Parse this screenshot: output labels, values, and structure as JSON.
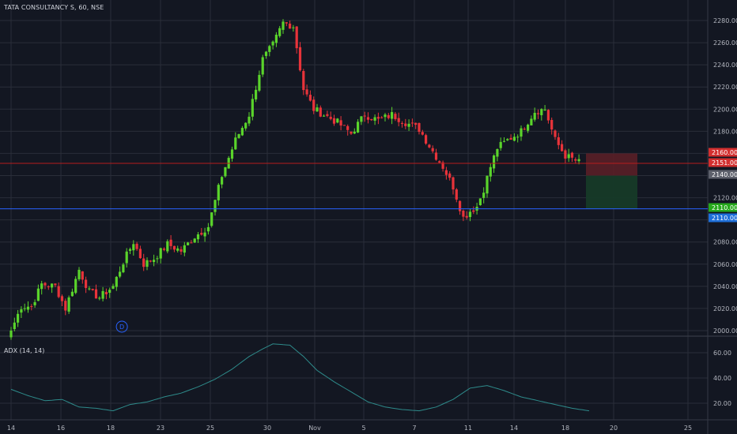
{
  "header": {
    "symbol_title": "TATA CONSULTANCY S, 60, NSE"
  },
  "indicator": {
    "title": "ADX (14, 14)"
  },
  "colors": {
    "background": "#131722",
    "grid": "#2a2e39",
    "up": "#5ad42b",
    "down": "#e8333a",
    "red_line": "#b71c1c",
    "blue_line": "#2962ff",
    "adx_line": "#2e8b8b",
    "stop_zone": "#5a1f27",
    "target_zone": "#163a28",
    "axis_text": "#b2b5be"
  },
  "chart_data": {
    "type": "candlestick",
    "title": "TATA CONSULTANCY S, 60, NSE",
    "x_ticks": [
      "14",
      "16",
      "18",
      "23",
      "25",
      "30",
      "Nov",
      "5",
      "7",
      "11",
      "14",
      "18",
      "20",
      "25"
    ],
    "y_ticks": [
      "2000.00",
      "2020.00",
      "2040.00",
      "2060.00",
      "2080.00",
      "2100.00",
      "2120.00",
      "2140.00",
      "2160.00",
      "2180.00",
      "2200.00",
      "2220.00",
      "2240.00",
      "2260.00",
      "2280.00"
    ],
    "ylim": [
      1995,
      2285
    ],
    "grid": true,
    "anchors": [
      {
        "bar": 0,
        "price": 2000
      },
      {
        "bar": 3,
        "price": 2022
      },
      {
        "bar": 6,
        "price": 2022
      },
      {
        "bar": 9,
        "price": 2042
      },
      {
        "bar": 13,
        "price": 2040
      },
      {
        "bar": 16,
        "price": 2020
      },
      {
        "bar": 20,
        "price": 2055
      },
      {
        "bar": 23,
        "price": 2035
      },
      {
        "bar": 26,
        "price": 2030
      },
      {
        "bar": 30,
        "price": 2040
      },
      {
        "bar": 33,
        "price": 2062
      },
      {
        "bar": 36,
        "price": 2080
      },
      {
        "bar": 39,
        "price": 2060
      },
      {
        "bar": 42,
        "price": 2065
      },
      {
        "bar": 46,
        "price": 2078
      },
      {
        "bar": 50,
        "price": 2072
      },
      {
        "bar": 54,
        "price": 2085
      },
      {
        "bar": 58,
        "price": 2094
      },
      {
        "bar": 62,
        "price": 2140
      },
      {
        "bar": 66,
        "price": 2172
      },
      {
        "bar": 70,
        "price": 2195
      },
      {
        "bar": 74,
        "price": 2245
      },
      {
        "bar": 77,
        "price": 2258
      },
      {
        "bar": 80,
        "price": 2278
      },
      {
        "bar": 83,
        "price": 2275
      },
      {
        "bar": 86,
        "price": 2218
      },
      {
        "bar": 89,
        "price": 2200
      },
      {
        "bar": 92,
        "price": 2195
      },
      {
        "bar": 96,
        "price": 2188
      },
      {
        "bar": 100,
        "price": 2178
      },
      {
        "bar": 104,
        "price": 2195
      },
      {
        "bar": 108,
        "price": 2190
      },
      {
        "bar": 112,
        "price": 2195
      },
      {
        "bar": 116,
        "price": 2188
      },
      {
        "bar": 120,
        "price": 2182
      },
      {
        "bar": 124,
        "price": 2162
      },
      {
        "bar": 127,
        "price": 2148
      },
      {
        "bar": 130,
        "price": 2130
      },
      {
        "bar": 133,
        "price": 2102
      },
      {
        "bar": 135,
        "price": 2108
      },
      {
        "bar": 137,
        "price": 2112
      },
      {
        "bar": 139,
        "price": 2128
      },
      {
        "bar": 141,
        "price": 2148
      },
      {
        "bar": 143,
        "price": 2165
      },
      {
        "bar": 146,
        "price": 2172
      },
      {
        "bar": 150,
        "price": 2180
      },
      {
        "bar": 154,
        "price": 2198
      },
      {
        "bar": 157,
        "price": 2200
      },
      {
        "bar": 160,
        "price": 2172
      },
      {
        "bar": 163,
        "price": 2158
      },
      {
        "bar": 167,
        "price": 2152
      }
    ],
    "horizontal_lines": [
      {
        "price": 2151,
        "label": "2151.00",
        "color": "#b71c1c"
      },
      {
        "price": 2110,
        "label": "2110.00",
        "color": "#2962ff"
      }
    ],
    "price_tags": [
      {
        "label": "2160.00",
        "bg": "#d32f2f"
      },
      {
        "label": "2151.00",
        "bg": "#d32f2f"
      },
      {
        "label": "2140.00",
        "bg": "#5d606b"
      },
      {
        "label": "2110.00",
        "bg": "#26a91c"
      },
      {
        "label": "2110.00",
        "bg": "#1e6fd9"
      }
    ],
    "position_tool": {
      "entry": 2140,
      "stop": 2160,
      "target": 2110
    },
    "marker": {
      "bar": 27,
      "label": "D"
    },
    "indicator": {
      "name": "ADX",
      "title": "ADX (14, 14)",
      "y_ticks": [
        "20.00",
        "40.00",
        "60.00"
      ],
      "ylim": [
        10,
        72
      ],
      "anchors": [
        {
          "bar": 0,
          "value": 31
        },
        {
          "bar": 5,
          "value": 26
        },
        {
          "bar": 10,
          "value": 22
        },
        {
          "bar": 15,
          "value": 23
        },
        {
          "bar": 20,
          "value": 17
        },
        {
          "bar": 25,
          "value": 16
        },
        {
          "bar": 30,
          "value": 14
        },
        {
          "bar": 35,
          "value": 19
        },
        {
          "bar": 40,
          "value": 21
        },
        {
          "bar": 45,
          "value": 25
        },
        {
          "bar": 50,
          "value": 28
        },
        {
          "bar": 55,
          "value": 33
        },
        {
          "bar": 60,
          "value": 39
        },
        {
          "bar": 65,
          "value": 47
        },
        {
          "bar": 70,
          "value": 57
        },
        {
          "bar": 74,
          "value": 63
        },
        {
          "bar": 77,
          "value": 67
        },
        {
          "bar": 82,
          "value": 66
        },
        {
          "bar": 86,
          "value": 57
        },
        {
          "bar": 90,
          "value": 46
        },
        {
          "bar": 95,
          "value": 37
        },
        {
          "bar": 100,
          "value": 29
        },
        {
          "bar": 105,
          "value": 21
        },
        {
          "bar": 110,
          "value": 17
        },
        {
          "bar": 115,
          "value": 15
        },
        {
          "bar": 120,
          "value": 14
        },
        {
          "bar": 125,
          "value": 17
        },
        {
          "bar": 130,
          "value": 23
        },
        {
          "bar": 135,
          "value": 32
        },
        {
          "bar": 140,
          "value": 34
        },
        {
          "bar": 145,
          "value": 30
        },
        {
          "bar": 150,
          "value": 25
        },
        {
          "bar": 155,
          "value": 22
        },
        {
          "bar": 160,
          "value": 19
        },
        {
          "bar": 165,
          "value": 16
        },
        {
          "bar": 170,
          "value": 14
        }
      ]
    }
  }
}
